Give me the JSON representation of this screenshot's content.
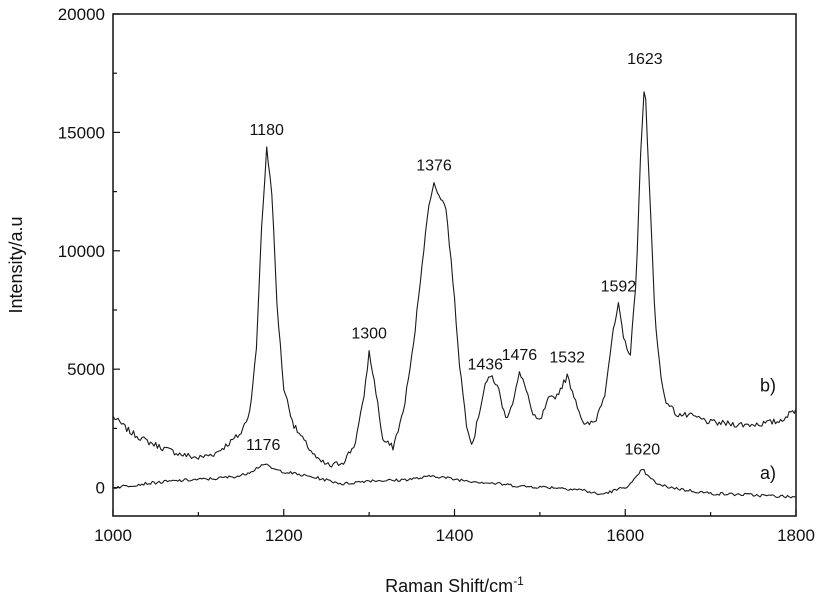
{
  "chart_data": {
    "type": "line",
    "title": "",
    "xlabel": "Raman Shift/cm",
    "xlabel_superscript": "-1",
    "ylabel": "Intensity/a.u",
    "xlim": [
      1000,
      1800
    ],
    "ylim": [
      -1200,
      20000
    ],
    "x_ticks": [
      "1000",
      "1200",
      "1400",
      "1600",
      "1800"
    ],
    "y_ticks": [
      "0",
      "5000",
      "10000",
      "15000",
      "20000"
    ],
    "grid": false,
    "series": [
      {
        "name": "b)",
        "points": [
          [
            1000,
            3000
          ],
          [
            1020,
            2350
          ],
          [
            1040,
            1950
          ],
          [
            1060,
            1650
          ],
          [
            1080,
            1400
          ],
          [
            1100,
            1250
          ],
          [
            1120,
            1450
          ],
          [
            1135,
            1850
          ],
          [
            1150,
            2300
          ],
          [
            1160,
            3200
          ],
          [
            1168,
            5800
          ],
          [
            1174,
            11000
          ],
          [
            1180,
            14300
          ],
          [
            1186,
            12500
          ],
          [
            1192,
            7800
          ],
          [
            1200,
            4200
          ],
          [
            1212,
            2600
          ],
          [
            1225,
            1900
          ],
          [
            1240,
            1150
          ],
          [
            1255,
            900
          ],
          [
            1270,
            1100
          ],
          [
            1283,
            1800
          ],
          [
            1293,
            3600
          ],
          [
            1300,
            5700
          ],
          [
            1307,
            4300
          ],
          [
            1316,
            2000
          ],
          [
            1328,
            1700
          ],
          [
            1340,
            3200
          ],
          [
            1352,
            6000
          ],
          [
            1362,
            9500
          ],
          [
            1371,
            12200
          ],
          [
            1376,
            12800
          ],
          [
            1382,
            12400
          ],
          [
            1390,
            11800
          ],
          [
            1398,
            8800
          ],
          [
            1406,
            5200
          ],
          [
            1414,
            2700
          ],
          [
            1421,
            1800
          ],
          [
            1428,
            3000
          ],
          [
            1436,
            4400
          ],
          [
            1444,
            4700
          ],
          [
            1452,
            4100
          ],
          [
            1460,
            2900
          ],
          [
            1468,
            3600
          ],
          [
            1476,
            4800
          ],
          [
            1484,
            4200
          ],
          [
            1492,
            3000
          ],
          [
            1500,
            2800
          ],
          [
            1510,
            3700
          ],
          [
            1520,
            3900
          ],
          [
            1532,
            4700
          ],
          [
            1541,
            3800
          ],
          [
            1552,
            2600
          ],
          [
            1565,
            2800
          ],
          [
            1576,
            4000
          ],
          [
            1585,
            6400
          ],
          [
            1592,
            7700
          ],
          [
            1598,
            6300
          ],
          [
            1606,
            5600
          ],
          [
            1613,
            9000
          ],
          [
            1618,
            14000
          ],
          [
            1623,
            17300
          ],
          [
            1628,
            13000
          ],
          [
            1635,
            7000
          ],
          [
            1645,
            3800
          ],
          [
            1660,
            3100
          ],
          [
            1680,
            3000
          ],
          [
            1700,
            2750
          ],
          [
            1720,
            2700
          ],
          [
            1740,
            2650
          ],
          [
            1760,
            2700
          ],
          [
            1780,
            2800
          ],
          [
            1800,
            3300
          ]
        ]
      },
      {
        "name": "a)",
        "points": [
          [
            1000,
            0
          ],
          [
            1040,
            180
          ],
          [
            1080,
            300
          ],
          [
            1120,
            380
          ],
          [
            1150,
            500
          ],
          [
            1165,
            750
          ],
          [
            1176,
            1000
          ],
          [
            1190,
            750
          ],
          [
            1210,
            600
          ],
          [
            1240,
            400
          ],
          [
            1270,
            150
          ],
          [
            1300,
            300
          ],
          [
            1330,
            300
          ],
          [
            1360,
            400
          ],
          [
            1376,
            500
          ],
          [
            1400,
            350
          ],
          [
            1440,
            200
          ],
          [
            1480,
            50
          ],
          [
            1520,
            0
          ],
          [
            1550,
            -100
          ],
          [
            1570,
            -300
          ],
          [
            1590,
            -100
          ],
          [
            1605,
            100
          ],
          [
            1615,
            500
          ],
          [
            1620,
            800
          ],
          [
            1627,
            450
          ],
          [
            1640,
            100
          ],
          [
            1670,
            -100
          ],
          [
            1700,
            -250
          ],
          [
            1740,
            -300
          ],
          [
            1770,
            -350
          ],
          [
            1800,
            -400
          ]
        ]
      }
    ],
    "peak_labels_b": [
      {
        "text": "1180",
        "x": 1180,
        "y": 14300
      },
      {
        "text": "1300",
        "x": 1300,
        "y": 5700
      },
      {
        "text": "1376",
        "x": 1376,
        "y": 12800
      },
      {
        "text": "1436",
        "x": 1436,
        "y": 4400
      },
      {
        "text": "1476",
        "x": 1476,
        "y": 4800
      },
      {
        "text": "1532",
        "x": 1532,
        "y": 4700
      },
      {
        "text": "1592",
        "x": 1592,
        "y": 7700
      },
      {
        "text": "1623",
        "x": 1623,
        "y": 17300
      }
    ],
    "peak_labels_a": [
      {
        "text": "1176",
        "x": 1176,
        "y": 1000
      },
      {
        "text": "1620",
        "x": 1620,
        "y": 800
      }
    ]
  }
}
